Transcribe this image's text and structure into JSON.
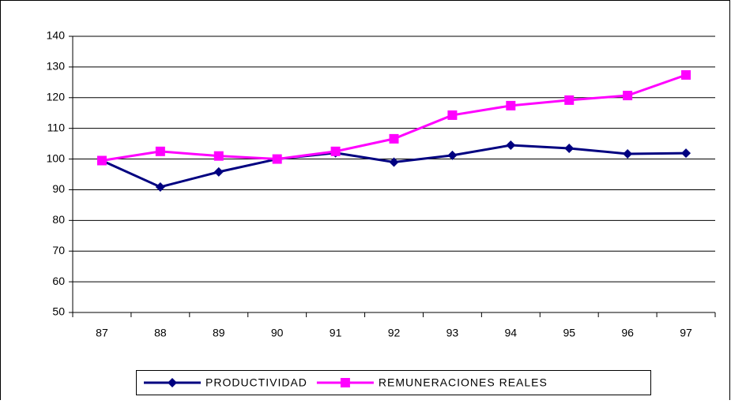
{
  "chart_data": {
    "type": "line",
    "categories": [
      "87",
      "88",
      "89",
      "90",
      "91",
      "92",
      "93",
      "94",
      "95",
      "96",
      "97"
    ],
    "series": [
      {
        "name": "PRODUCTIVIDAD",
        "color": "#000080",
        "marker": "diamond",
        "values": [
          99.5,
          90.9,
          95.8,
          100,
          102,
          99,
          101.2,
          104.5,
          103.5,
          101.7,
          101.9
        ]
      },
      {
        "name": "REMUNERACIONES REALES",
        "color": "#ff00ff",
        "marker": "square",
        "values": [
          99.5,
          102.5,
          101,
          100,
          102.5,
          106.6,
          114.3,
          117.4,
          119.2,
          120.7,
          127.4
        ]
      }
    ],
    "ylim": [
      50,
      140
    ],
    "yticks": [
      50,
      60,
      70,
      80,
      90,
      100,
      110,
      120,
      130,
      140
    ],
    "grid": true,
    "legend": "bottom"
  }
}
